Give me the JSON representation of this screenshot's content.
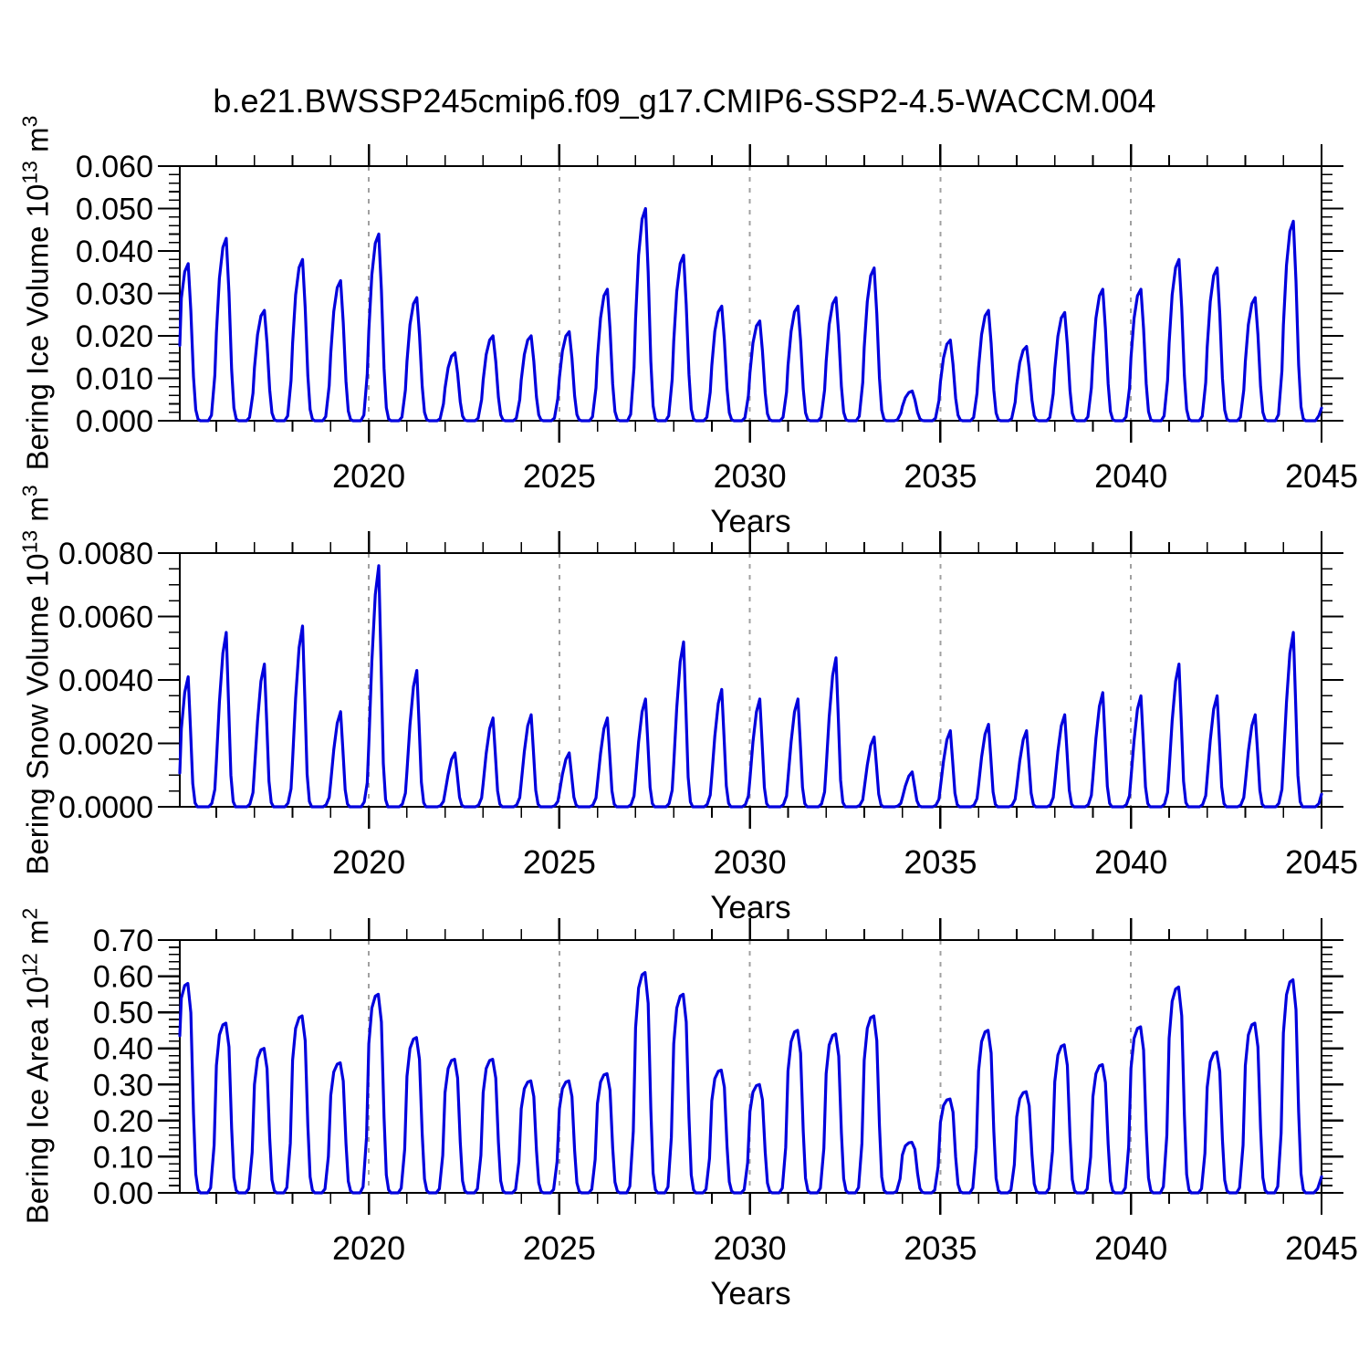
{
  "chart_data": {
    "type": "line",
    "title": "b.e21.BWSSP245cmip6.f09_g17.CMIP6-SSP2-4.5-WACCM.004",
    "x_domain": [
      2015.04,
      2045.0
    ],
    "x_major_ticks": [
      2020,
      2025,
      2030,
      2035,
      2040,
      2045
    ],
    "x_tick_labels": [
      "2020",
      "2025",
      "2030",
      "2035",
      "2040",
      "2045"
    ],
    "x_minor_step": 1,
    "grid_years": [
      2020,
      2025,
      2030,
      2035,
      2040
    ],
    "grid_on": true,
    "legend": "none",
    "series_color": "#0000dd",
    "grid_color": "#a0a0a0",
    "axis_color": "#000000",
    "years": [
      2015,
      2016,
      2017,
      2018,
      2019,
      2020,
      2021,
      2022,
      2023,
      2024,
      2025,
      2026,
      2027,
      2028,
      2029,
      2030,
      2031,
      2032,
      2033,
      2034,
      2035,
      2036,
      2037,
      2038,
      2039,
      2040,
      2041,
      2042,
      2043,
      2044
    ],
    "note": "annual_peaks are the late-winter maxima of each yearly cycle read from the plot; values fall to ~0 each summer",
    "panels": [
      {
        "id": "ice-volume",
        "ylabel": {
          "base": "Bering Ice Volume 10",
          "exp": "13",
          "unit": " m",
          "exp2": "3"
        },
        "xlabel": "Years",
        "ylim": [
          0,
          0.06
        ],
        "ytick_vals": [
          0,
          0.01,
          0.02,
          0.03,
          0.04,
          0.05,
          0.06
        ],
        "ytick_labels": [
          "0.000",
          "0.010",
          "0.020",
          "0.030",
          "0.040",
          "0.050",
          "0.060"
        ],
        "yminor_step": 0.002,
        "annual_peaks": [
          0.037,
          0.043,
          0.026,
          0.038,
          0.033,
          0.044,
          0.029,
          0.016,
          0.02,
          0.02,
          0.021,
          0.031,
          0.05,
          0.039,
          0.027,
          0.0235,
          0.027,
          0.029,
          0.036,
          0.007,
          0.019,
          0.026,
          0.0175,
          0.0255,
          0.031,
          0.031,
          0.038,
          0.036,
          0.029,
          0.047
        ],
        "tail": [
          [
            2044.84,
            0.0
          ],
          [
            2044.93,
            0.0012
          ],
          [
            2045.0,
            0.003
          ]
        ],
        "profile": [
          [
            0,
            0.48,
            0
          ],
          [
            0.08,
            0.78,
            0
          ],
          [
            0.17,
            0.95,
            0
          ],
          [
            0.26,
            1,
            0
          ],
          [
            0.33,
            0.7,
            0
          ],
          [
            0.4,
            0.28,
            0
          ],
          [
            0.46,
            0.07,
            0
          ],
          [
            0.52,
            0.01,
            0
          ],
          [
            0.58,
            0,
            0
          ],
          [
            0.79,
            0,
            0
          ],
          [
            0.87,
            0.03,
            1
          ],
          [
            0.96,
            0.25,
            1
          ]
        ]
      },
      {
        "id": "snow-volume",
        "ylabel": {
          "base": "Bering Snow Volume 10",
          "exp": "13",
          "unit": " m",
          "exp2": "3"
        },
        "xlabel": "Years",
        "ylim": [
          0,
          0.008
        ],
        "ytick_vals": [
          0,
          0.002,
          0.004,
          0.006,
          0.008
        ],
        "ytick_labels": [
          "0.0000",
          "0.0020",
          "0.0040",
          "0.0060",
          "0.0080"
        ],
        "yminor_step": 0.0005,
        "annual_peaks": [
          0.0041,
          0.0055,
          0.0045,
          0.0057,
          0.003,
          0.0076,
          0.0043,
          0.0017,
          0.0028,
          0.0029,
          0.0017,
          0.0028,
          0.0034,
          0.0052,
          0.0037,
          0.0034,
          0.0034,
          0.0047,
          0.0022,
          0.0011,
          0.0024,
          0.0026,
          0.0024,
          0.0029,
          0.0036,
          0.0035,
          0.0045,
          0.0035,
          0.0029,
          0.0055
        ],
        "tail": [
          [
            2044.84,
            0.0
          ],
          [
            2044.93,
            0.0001
          ],
          [
            2045.0,
            0.0004
          ]
        ],
        "profile": [
          [
            0,
            0.26,
            0
          ],
          [
            0.08,
            0.6,
            0
          ],
          [
            0.17,
            0.88,
            0
          ],
          [
            0.26,
            1,
            0
          ],
          [
            0.32,
            0.6,
            0
          ],
          [
            0.38,
            0.18,
            0
          ],
          [
            0.44,
            0.03,
            0
          ],
          [
            0.5,
            0,
            0
          ],
          [
            0.8,
            0,
            0
          ],
          [
            0.88,
            0.02,
            1
          ],
          [
            0.96,
            0.1,
            1
          ]
        ]
      },
      {
        "id": "ice-area",
        "ylabel": {
          "base": "Bering Ice Area 10",
          "exp": "12",
          "unit": " m",
          "exp2": "2"
        },
        "xlabel": "Years",
        "ylim": [
          0,
          0.7
        ],
        "ytick_vals": [
          0,
          0.1,
          0.2,
          0.3,
          0.4,
          0.5,
          0.6,
          0.7
        ],
        "ytick_labels": [
          "0.00",
          "0.10",
          "0.20",
          "0.30",
          "0.40",
          "0.50",
          "0.60",
          "0.70"
        ],
        "yminor_step": 0.02,
        "annual_peaks": [
          0.58,
          0.47,
          0.4,
          0.49,
          0.36,
          0.55,
          0.43,
          0.37,
          0.37,
          0.31,
          0.31,
          0.33,
          0.61,
          0.55,
          0.34,
          0.3,
          0.45,
          0.44,
          0.49,
          0.14,
          0.26,
          0.45,
          0.28,
          0.41,
          0.355,
          0.46,
          0.57,
          0.39,
          0.47,
          0.59
        ],
        "tail": [
          [
            2044.8,
            0.0
          ],
          [
            2044.9,
            0.012
          ],
          [
            2045.0,
            0.045
          ]
        ],
        "profile": [
          [
            0,
            0.75,
            0
          ],
          [
            0.08,
            0.93,
            0
          ],
          [
            0.17,
            0.99,
            0
          ],
          [
            0.25,
            1,
            0
          ],
          [
            0.33,
            0.86,
            0
          ],
          [
            0.4,
            0.38,
            0
          ],
          [
            0.46,
            0.09,
            0
          ],
          [
            0.52,
            0.015,
            0
          ],
          [
            0.58,
            0,
            0
          ],
          [
            0.77,
            0,
            0
          ],
          [
            0.85,
            0.03,
            1
          ],
          [
            0.94,
            0.28,
            1
          ]
        ]
      }
    ]
  }
}
